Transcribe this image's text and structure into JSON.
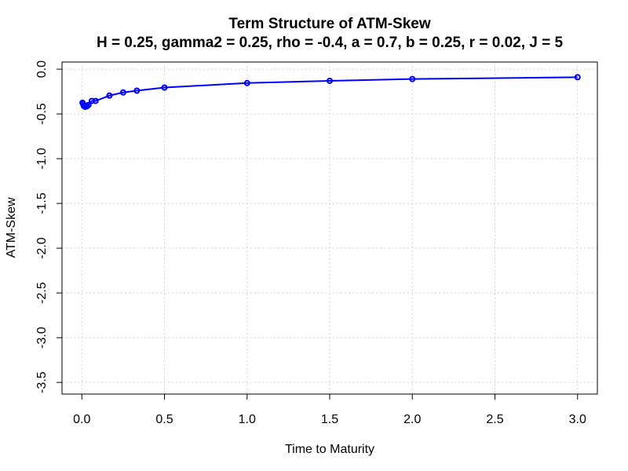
{
  "chart_data": {
    "type": "line",
    "title": "Term Structure of ATM-Skew",
    "subtitle": "H = 0.25, gamma2 = 0.25, rho = -0.4, a = 0.7, b = 0.25, r = 0.02, J = 5",
    "xlabel": "Time to Maturity",
    "ylabel": "ATM-Skew",
    "xlim": [
      -0.12,
      3.12
    ],
    "ylim": [
      -3.63,
      0.08
    ],
    "x_ticks": [
      0.0,
      0.5,
      1.0,
      1.5,
      2.0,
      2.5,
      3.0
    ],
    "x_tick_labels": [
      "0.0",
      "0.5",
      "1.0",
      "1.5",
      "2.0",
      "2.5",
      "3.0"
    ],
    "y_ticks": [
      0.0,
      -0.5,
      -1.0,
      -1.5,
      -2.0,
      -2.5,
      -3.0,
      -3.5
    ],
    "y_tick_labels": [
      "0.0",
      "-0.5",
      "-1.0",
      "-1.5",
      "-2.0",
      "-2.5",
      "-3.0",
      "-3.5"
    ],
    "grid": true,
    "colors": {
      "series": "#0000ff",
      "grid": "#d3d3d3",
      "axis": "#000000"
    },
    "series": [
      {
        "marker": "open-circle",
        "x": [
          0.004,
          0.008,
          0.012,
          0.02,
          0.03,
          0.04,
          0.06,
          0.083,
          0.167,
          0.25,
          0.333,
          0.5,
          1.0,
          1.5,
          2.0,
          3.0
        ],
        "y": [
          -0.375,
          -0.39,
          -0.41,
          -0.42,
          -0.415,
          -0.4,
          -0.355,
          -0.355,
          -0.295,
          -0.26,
          -0.24,
          -0.205,
          -0.155,
          -0.13,
          -0.11,
          -0.09
        ]
      }
    ]
  }
}
